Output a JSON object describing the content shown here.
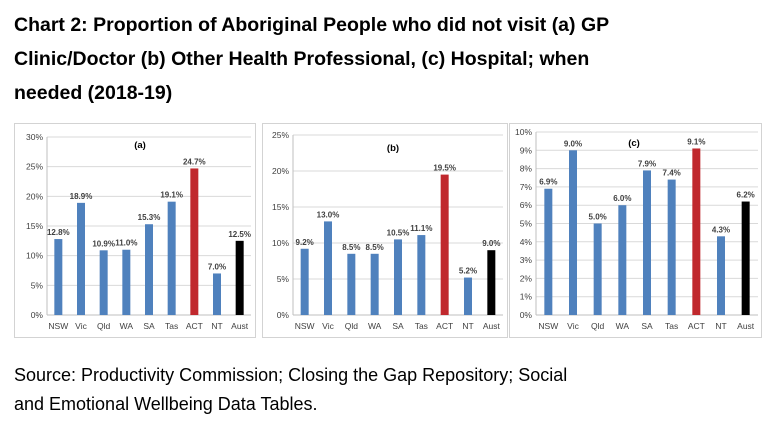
{
  "title_lines": [
    "Chart 2: Proportion of Aboriginal People who did not visit (a) GP",
    "Clinic/Doctor (b) Other Health Professional, (c) Hospital; when",
    "needed (2018-19)"
  ],
  "source_lines": [
    "Source: Productivity Commission; Closing the Gap Repository; Social",
    "and Emotional Wellbeing Data Tables."
  ],
  "colors": {
    "bar_default": "#4f81bd",
    "bar_act": "#c0282d",
    "bar_aust": "#000000",
    "grid": "#d9d9d9"
  },
  "chart_data": [
    {
      "type": "bar",
      "title": "(a)",
      "categories": [
        "NSW",
        "Vic",
        "Qld",
        "WA",
        "SA",
        "Tas",
        "ACT",
        "NT",
        "Aust"
      ],
      "values": [
        12.8,
        18.9,
        10.9,
        11.0,
        15.3,
        19.1,
        24.7,
        7.0,
        12.5
      ],
      "data_labels": [
        "12.8%",
        "18.9%",
        "10.9%",
        "11.0%",
        "15.3%",
        "19.1%",
        "24.7%",
        "7.0%",
        "12.5%"
      ],
      "ylim": [
        0,
        30
      ],
      "yticks": [
        0,
        5,
        10,
        15,
        20,
        25,
        30
      ],
      "ytick_labels": [
        "0%",
        "5%",
        "10%",
        "15%",
        "20%",
        "25%",
        "30%"
      ],
      "grid": true
    },
    {
      "type": "bar",
      "title": "(b)",
      "categories": [
        "NSW",
        "Vic",
        "Qld",
        "WA",
        "SA",
        "Tas",
        "ACT",
        "NT",
        "Aust"
      ],
      "values": [
        9.2,
        13.0,
        8.5,
        8.5,
        10.5,
        11.1,
        19.5,
        5.2,
        9.0
      ],
      "data_labels": [
        "9.2%",
        "13.0%",
        "8.5%",
        "8.5%",
        "10.5%",
        "11.1%",
        "19.5%",
        "5.2%",
        "9.0%"
      ],
      "ylim": [
        0,
        25
      ],
      "yticks": [
        0,
        5,
        10,
        15,
        20,
        25
      ],
      "ytick_labels": [
        "0%",
        "5%",
        "10%",
        "15%",
        "20%",
        "25%"
      ],
      "grid": true
    },
    {
      "type": "bar",
      "title": "(c)",
      "categories": [
        "NSW",
        "Vic",
        "Qld",
        "WA",
        "SA",
        "Tas",
        "ACT",
        "NT",
        "Aust"
      ],
      "values": [
        6.9,
        9.0,
        5.0,
        6.0,
        7.9,
        7.4,
        9.1,
        4.3,
        6.2
      ],
      "data_labels": [
        "6.9%",
        "9.0%",
        "5.0%",
        "6.0%",
        "7.9%",
        "7.4%",
        "9.1%",
        "4.3%",
        "6.2%"
      ],
      "ylim": [
        0,
        10
      ],
      "yticks": [
        0,
        1,
        2,
        3,
        4,
        5,
        6,
        7,
        8,
        9,
        10
      ],
      "ytick_labels": [
        "0%",
        "1%",
        "2%",
        "3%",
        "4%",
        "5%",
        "6%",
        "7%",
        "8%",
        "9%",
        "10%"
      ],
      "grid": true
    }
  ]
}
